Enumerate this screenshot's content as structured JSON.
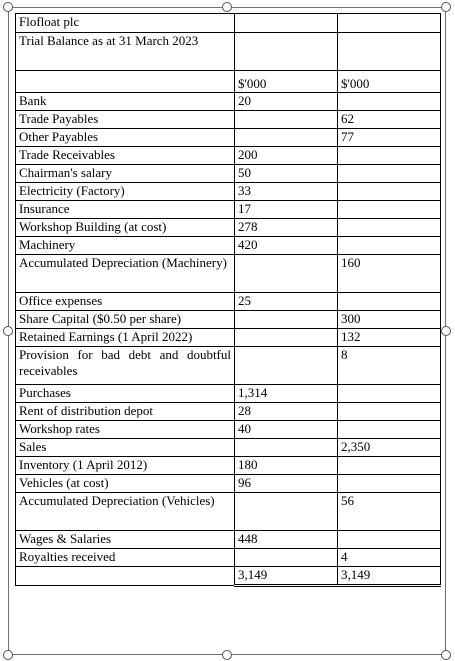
{
  "company": "Flofloat plc",
  "statement_title": "Trial Balance as at 31 March 2023",
  "columns": [
    "$'000",
    "$'000"
  ],
  "rows": [
    {
      "label": "Bank",
      "debit": "20",
      "credit": ""
    },
    {
      "label": "Trade Payables",
      "debit": "",
      "credit": "62"
    },
    {
      "label": "Other Payables",
      "debit": "",
      "credit": "77"
    },
    {
      "label": "Trade Receivables",
      "debit": "200",
      "credit": ""
    },
    {
      "label": "Chairman's salary",
      "debit": "50",
      "credit": ""
    },
    {
      "label": "Electricity (Factory)",
      "debit": "33",
      "credit": ""
    },
    {
      "label": "Insurance",
      "debit": "17",
      "credit": ""
    },
    {
      "label": "Workshop Building (at cost)",
      "debit": "278",
      "credit": ""
    },
    {
      "label": "Machinery",
      "debit": "420",
      "credit": ""
    },
    {
      "label": "Accumulated Depreciation (Machinery)",
      "debit": "",
      "credit": "160"
    },
    {
      "label": "Office expenses",
      "debit": "25",
      "credit": ""
    },
    {
      "label": "Share Capital ($0.50 per share)",
      "debit": "",
      "credit": "300"
    },
    {
      "label": "Retained Earnings (1 April 2022)",
      "debit": "",
      "credit": "132"
    },
    {
      "label": "Provision for bad debt and doubtful receivables",
      "debit": "",
      "credit": "8"
    },
    {
      "label": "Purchases",
      "debit": "1,314",
      "credit": ""
    },
    {
      "label": "Rent of distribution depot",
      "debit": "28",
      "credit": ""
    },
    {
      "label": "Workshop rates",
      "debit": "40",
      "credit": ""
    },
    {
      "label": "Sales",
      "debit": "",
      "credit": "2,350"
    },
    {
      "label": "Inventory (1 April 2012)",
      "debit": "180",
      "credit": ""
    },
    {
      "label": "Vehicles (at cost)",
      "debit": "96",
      "credit": ""
    },
    {
      "label": "Accumulated Depreciation (Vehicles)",
      "debit": "",
      "credit": "56"
    },
    {
      "label": "Wages & Salaries",
      "debit": "448",
      "credit": ""
    },
    {
      "label": "Royalties received",
      "debit": "",
      "credit": "4"
    }
  ],
  "totals": {
    "debit": "3,149",
    "credit": "3,149"
  }
}
